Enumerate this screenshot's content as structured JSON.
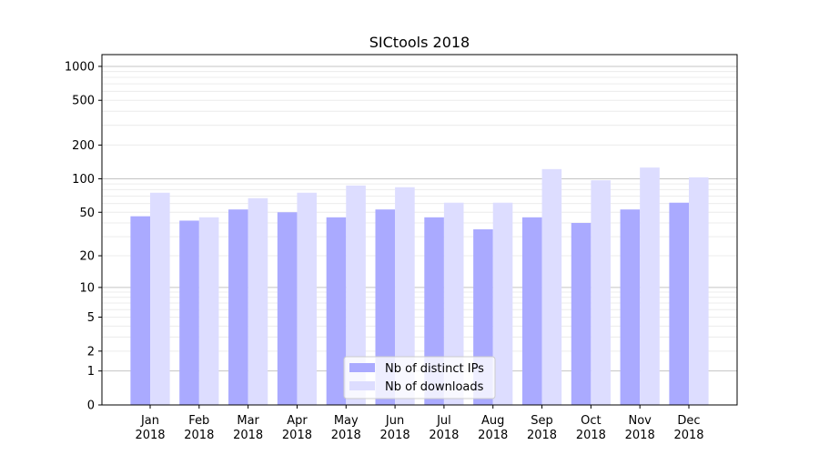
{
  "chart_data": {
    "type": "bar",
    "title": "SICtools 2018",
    "xlabel": "",
    "ylabel": "",
    "yscale": "symlog",
    "ylim": [
      0,
      1300
    ],
    "yticks": [
      0,
      1,
      2,
      5,
      10,
      20,
      50,
      100,
      200,
      500,
      1000
    ],
    "grid": true,
    "legend_position": "bottom-center",
    "categories": [
      "Jan\n2018",
      "Feb\n2018",
      "Mar\n2018",
      "Apr\n2018",
      "May\n2018",
      "Jun\n2018",
      "Jul\n2018",
      "Aug\n2018",
      "Sep\n2018",
      "Oct\n2018",
      "Nov\n2018",
      "Dec\n2018"
    ],
    "series": [
      {
        "name": "Nb of distinct IPs",
        "color": "#aaaaff",
        "values": [
          46,
          42,
          53,
          50,
          45,
          53,
          45,
          35,
          45,
          40,
          53,
          61
        ]
      },
      {
        "name": "Nb of downloads",
        "color": "#ddddff",
        "values": [
          75,
          45,
          67,
          75,
          87,
          84,
          61,
          61,
          122,
          97,
          126,
          103
        ]
      }
    ]
  }
}
